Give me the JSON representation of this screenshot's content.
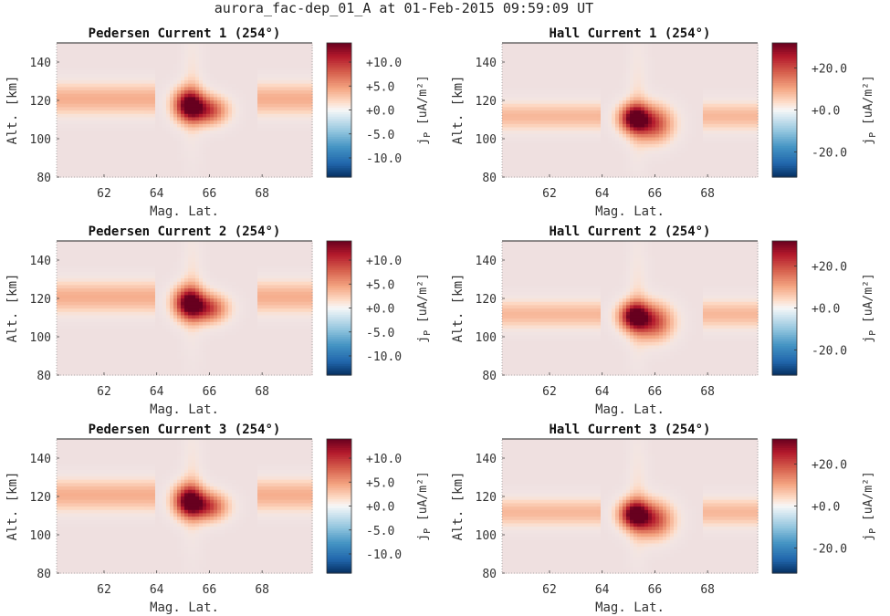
{
  "figure": {
    "title": "aurora_fac-dep_01_A at 01-Feb-2015 09:59:09 UT"
  },
  "colors": {
    "negative": "#053061",
    "neutral": "#f7f7f7",
    "positive": "#67001f",
    "background_field": "#efe0e0"
  },
  "chart_data": [
    {
      "type": "heatmap",
      "title": "Pedersen Current 1 (254°)",
      "xlabel": "Mag. Lat.",
      "ylabel": "Alt. [km]",
      "xlim": [
        60.2,
        69.9
      ],
      "ylim": [
        80,
        150
      ],
      "xticks": [
        "62",
        "64",
        "66",
        "68"
      ],
      "yticks": [
        "80",
        "100",
        "120",
        "140"
      ],
      "colorbar": {
        "label": "jP [uA/m²]",
        "range": [
          -14,
          14
        ],
        "ticks": [
          "+10.0",
          "+5.0",
          "+0.0",
          "-5.0",
          "-10.0"
        ],
        "tick_values": [
          10,
          5,
          0,
          -5,
          -10
        ]
      },
      "field": {
        "band_center_alt": 121,
        "band_value": 4,
        "peak_lat": 65.2,
        "peak_alt": 118,
        "peak_value": 14
      }
    },
    {
      "type": "heatmap",
      "title": "Hall Current 1 (254°)",
      "xlabel": "Mag. Lat.",
      "ylabel": "Alt. [km]",
      "xlim": [
        60.2,
        69.9
      ],
      "ylim": [
        80,
        150
      ],
      "xticks": [
        "62",
        "64",
        "66",
        "68"
      ],
      "yticks": [
        "80",
        "100",
        "120",
        "140"
      ],
      "colorbar": {
        "label": "jP [uA/m²]",
        "range": [
          -32,
          32
        ],
        "ticks": [
          "+20.0",
          "+0.0",
          "-20.0"
        ],
        "tick_values": [
          20,
          0,
          -20
        ]
      },
      "field": {
        "band_center_alt": 112,
        "band_value": 8,
        "peak_lat": 65.2,
        "peak_alt": 111,
        "peak_value": 32
      }
    },
    {
      "type": "heatmap",
      "title": "Pedersen Current 2 (254°)",
      "xlabel": "Mag. Lat.",
      "ylabel": "Alt. [km]",
      "xlim": [
        60.2,
        69.9
      ],
      "ylim": [
        80,
        150
      ],
      "xticks": [
        "62",
        "64",
        "66",
        "68"
      ],
      "yticks": [
        "80",
        "100",
        "120",
        "140"
      ],
      "colorbar": {
        "label": "jP [uA/m²]",
        "range": [
          -14,
          14
        ],
        "ticks": [
          "+10.0",
          "+5.0",
          "+0.0",
          "-5.0",
          "-10.0"
        ],
        "tick_values": [
          10,
          5,
          0,
          -5,
          -10
        ]
      },
      "field": {
        "band_center_alt": 121,
        "band_value": 4,
        "peak_lat": 65.2,
        "peak_alt": 118,
        "peak_value": 14
      }
    },
    {
      "type": "heatmap",
      "title": "Hall Current 2 (254°)",
      "xlabel": "Mag. Lat.",
      "ylabel": "Alt. [km]",
      "xlim": [
        60.2,
        69.9
      ],
      "ylim": [
        80,
        150
      ],
      "xticks": [
        "62",
        "64",
        "66",
        "68"
      ],
      "yticks": [
        "80",
        "100",
        "120",
        "140"
      ],
      "colorbar": {
        "label": "jP [uA/m²]",
        "range": [
          -32,
          32
        ],
        "ticks": [
          "+20.0",
          "+0.0",
          "-20.0"
        ],
        "tick_values": [
          20,
          0,
          -20
        ]
      },
      "field": {
        "band_center_alt": 112,
        "band_value": 8,
        "peak_lat": 65.2,
        "peak_alt": 111,
        "peak_value": 32
      }
    },
    {
      "type": "heatmap",
      "title": "Pedersen Current 3 (254°)",
      "xlabel": "Mag. Lat.",
      "ylabel": "Alt. [km]",
      "xlim": [
        60.2,
        69.9
      ],
      "ylim": [
        80,
        150
      ],
      "xticks": [
        "62",
        "64",
        "66",
        "68"
      ],
      "yticks": [
        "80",
        "100",
        "120",
        "140"
      ],
      "colorbar": {
        "label": "jP [uA/m²]",
        "range": [
          -14,
          14
        ],
        "ticks": [
          "+10.0",
          "+5.0",
          "+0.0",
          "-5.0",
          "-10.0"
        ],
        "tick_values": [
          10,
          5,
          0,
          -5,
          -10
        ]
      },
      "field": {
        "band_center_alt": 121,
        "band_value": 4,
        "peak_lat": 65.2,
        "peak_alt": 118,
        "peak_value": 14
      }
    },
    {
      "type": "heatmap",
      "title": "Hall Current 3 (254°)",
      "xlabel": "Mag. Lat.",
      "ylabel": "Alt. [km]",
      "xlim": [
        60.2,
        69.9
      ],
      "ylim": [
        80,
        150
      ],
      "xticks": [
        "62",
        "64",
        "66",
        "68"
      ],
      "yticks": [
        "80",
        "100",
        "120",
        "140"
      ],
      "colorbar": {
        "label": "jP [uA/m²]",
        "range": [
          -32,
          32
        ],
        "ticks": [
          "+20.0",
          "+0.0",
          "-20.0"
        ],
        "tick_values": [
          20,
          0,
          -20
        ]
      },
      "field": {
        "band_center_alt": 112,
        "band_value": 8,
        "peak_lat": 65.2,
        "peak_alt": 111,
        "peak_value": 32
      }
    }
  ]
}
